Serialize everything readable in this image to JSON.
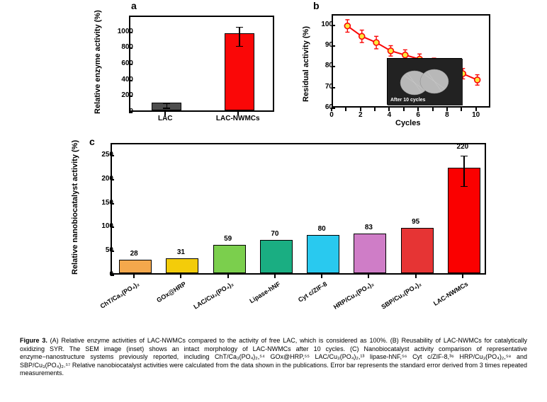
{
  "panelA": {
    "label": "a",
    "ylabel": "Relative enzyme activity (%)",
    "ylim": [
      0,
      1200
    ],
    "yticks": [
      0,
      200,
      400,
      600,
      800,
      1000
    ],
    "bars": [
      {
        "name": "LAC",
        "value": 100,
        "err": 30,
        "color": "#4d4d4d"
      },
      {
        "name": "LAC-NWMCs",
        "value": 960,
        "err": 120,
        "color": "#fa0707"
      }
    ]
  },
  "panelB": {
    "label": "b",
    "ylabel": "Residual activity (%)",
    "xlabel": "Cycles",
    "xlim": [
      0,
      11
    ],
    "ylim": [
      60,
      105
    ],
    "xticks": [
      0,
      2,
      4,
      6,
      8,
      10
    ],
    "yticks": [
      60,
      70,
      80,
      90,
      100
    ],
    "line_color": "#fa0707",
    "marker_edge": "#fa0707",
    "marker_fill": "#fbea3b",
    "points": [
      {
        "x": 1,
        "y": 100,
        "e": 3
      },
      {
        "x": 2,
        "y": 95,
        "e": 3
      },
      {
        "x": 3,
        "y": 92,
        "e": 3
      },
      {
        "x": 4,
        "y": 88,
        "e": 2.5
      },
      {
        "x": 5,
        "y": 86,
        "e": 2.5
      },
      {
        "x": 6,
        "y": 84,
        "e": 2.5
      },
      {
        "x": 7,
        "y": 82,
        "e": 2.5
      },
      {
        "x": 8,
        "y": 80,
        "e": 2.5
      },
      {
        "x": 9,
        "y": 77,
        "e": 2.5
      },
      {
        "x": 10,
        "y": 74,
        "e": 2.5
      }
    ],
    "inset_label": "After 10 cycles"
  },
  "panelC": {
    "label": "c",
    "ylabel": "Relative nanobiocatalyst activity (%)",
    "ylim": [
      0,
      275
    ],
    "yticks": [
      0,
      50,
      100,
      150,
      200,
      250
    ],
    "bars": [
      {
        "name": "ChT/Ca₃(PO₄)₂",
        "value": 28,
        "color": "#f4a84c",
        "err": 0
      },
      {
        "name": "GOx@HRP",
        "value": 31,
        "color": "#f3cc0a",
        "err": 0
      },
      {
        "name": "LAC/Cu₃(PO₄)₂",
        "value": 59,
        "color": "#7bcf4d",
        "err": 0
      },
      {
        "name": "Lipase-hNF",
        "value": 70,
        "color": "#1aae82",
        "err": 0
      },
      {
        "name": "Cyt c/ZIF-8",
        "value": 80,
        "color": "#29c9ef",
        "err": 0
      },
      {
        "name": "HRP/Cu₃(PO₄)₂",
        "value": 83,
        "color": "#cf7dc7",
        "err": 0
      },
      {
        "name": "SBP/Cu₃(PO₄)₂",
        "value": 95,
        "color": "#e63434",
        "err": 0
      },
      {
        "name": "LAC-NWMCs",
        "value": 220,
        "color": "#fa0000",
        "err": 32
      }
    ]
  },
  "caption": {
    "fig_label": "Figure 3.",
    "text": " (A) Relative enzyme activities of LAC-NWMCs compared to the activity of free LAC, which is considered as 100%. (B) Reusability of LAC-NWMCs for catalytically oxidizing SYR. The SEM image (inset) shows an intact morphology of LAC-NWMCs after 10 cycles. (C) Nanobiocatalyst activity comparison of representative enzyme−nanostructure systems previously reported, including ChT/Ca₃(PO₄)₂,⁵⁴ GOx@HRP,⁵⁵ LAC/Cu₃(PO₄)₂,¹³ lipase-hNF,⁵⁶ Cyt c/ZIF-8,³⁶ HRP/Cu₃(PO₄)₂,⁵⁸ and SBP/Cu₃(PO₄)₂.⁵⁷ Relative nanobiocatalyst activities were calculated from the data shown in the publications. Error bar represents the standard error derived from 3 times repeated measurements."
  }
}
